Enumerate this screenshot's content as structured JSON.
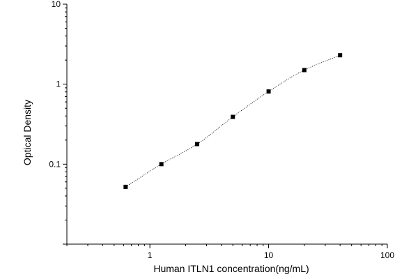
{
  "chart_data": {
    "type": "scatter",
    "title": "",
    "xlabel": "Human ITLN1 concentration(ng/mL)",
    "ylabel": "Optical Density",
    "xscale": "log",
    "yscale": "log",
    "xlim": [
      0.2,
      100
    ],
    "ylim": [
      0.01,
      10
    ],
    "x_ticks": [
      {
        "value": 1,
        "label": "1"
      },
      {
        "value": 10,
        "label": "10"
      },
      {
        "value": 100,
        "label": "100"
      }
    ],
    "y_ticks": [
      {
        "value": 0.1,
        "label": "0.1"
      },
      {
        "value": 1,
        "label": "1"
      },
      {
        "value": 10,
        "label": "10"
      }
    ],
    "grid": false,
    "legend": "none",
    "marker": "square",
    "fit_line": "dotted",
    "colors": {
      "marker": "#000000",
      "line": "#000000",
      "axis": "#000000"
    },
    "series": [
      {
        "x": [
          0.625,
          1.25,
          2.5,
          5,
          10,
          20,
          40
        ],
        "y": [
          0.052,
          0.1,
          0.178,
          0.39,
          0.81,
          1.5,
          2.3
        ]
      }
    ]
  }
}
